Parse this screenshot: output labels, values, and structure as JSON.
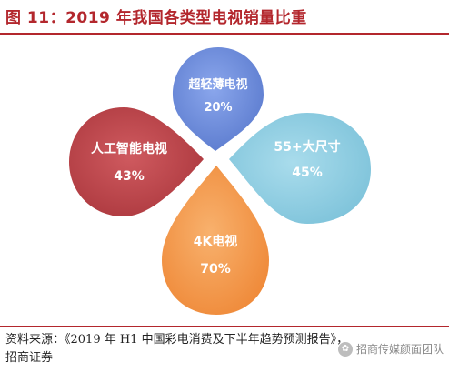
{
  "header": {
    "title": "图 11：2019 年我国各类型电视销量比重"
  },
  "chart_data": {
    "type": "pie",
    "title": "图 11：2019 年我国各类型电视销量比重",
    "categories": [
      "超轻薄电视",
      "55+大尺寸",
      "4K电视",
      "人工智能电视"
    ],
    "values": [
      20,
      45,
      70,
      43
    ],
    "value_labels": [
      "20%",
      "45%",
      "70%",
      "43%"
    ],
    "colors": [
      "#6d8fdd",
      "#8ecfe3",
      "#f39a4a",
      "#bd4147"
    ],
    "legend": "none"
  },
  "footer": {
    "source_line1": "资料来源：《2019 年 H1 中国彩电消费及下半年趋势预测报告》，",
    "source_line2": "招商证券",
    "watermark": "招商传媒颜面团队"
  }
}
